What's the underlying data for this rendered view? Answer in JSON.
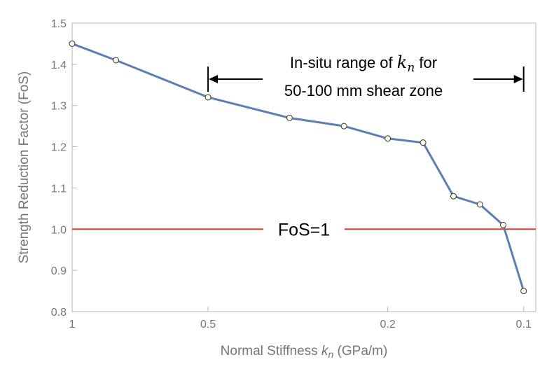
{
  "chart_data": {
    "type": "line",
    "title": "",
    "xlabel": "Normal Stiffness k_n (GPa/m)",
    "xlabel_prefix": "Normal Stiffness ",
    "xlabel_var": "k",
    "xlabel_sub": "n",
    "xlabel_suffix": " (GPa/m)",
    "ylabel": "Strength Reduction Factor (FoS)",
    "x_scale": "log-reversed",
    "xlim": [
      1.0,
      0.094
    ],
    "ylim": [
      0.8,
      1.5
    ],
    "x_ticks": [
      1,
      0.5,
      0.2,
      0.1
    ],
    "x_tick_labels": [
      "1",
      "0.5",
      "0.2",
      "0.1"
    ],
    "y_ticks": [
      0.8,
      0.9,
      1.0,
      1.1,
      1.2,
      1.3,
      1.4,
      1.5
    ],
    "y_tick_labels": [
      "0.8",
      "0.9",
      "1.0",
      "1.1",
      "1.2",
      "1.3",
      "1.4",
      "1.5"
    ],
    "grid": false,
    "series": [
      {
        "color": "#5b7fb5",
        "x": [
          1.0,
          0.8,
          0.5,
          0.33,
          0.25,
          0.2,
          0.167,
          0.143,
          0.125,
          0.111,
          0.1
        ],
        "y": [
          1.45,
          1.41,
          1.32,
          1.27,
          1.25,
          1.22,
          1.21,
          1.08,
          1.06,
          1.01,
          0.85
        ]
      }
    ],
    "reference_line": {
      "y": 1.0,
      "label": "FoS=1",
      "color": "#d6412f"
    },
    "annotation": {
      "line1": "In-situ range of ",
      "line1_var": "k",
      "line1_sub": "n",
      "line1_suffix": " for",
      "line2": "50-100 mm shear zone",
      "range_x": [
        0.5,
        0.1
      ]
    }
  }
}
